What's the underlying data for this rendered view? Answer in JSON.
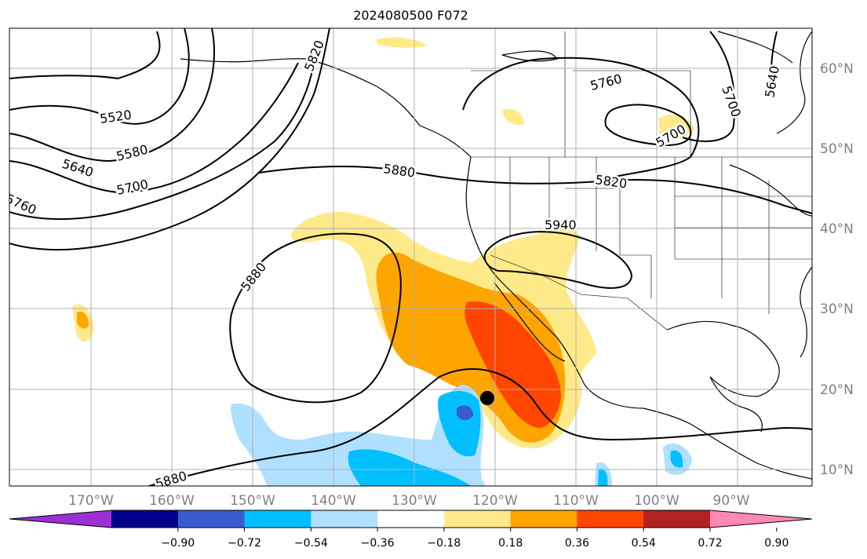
{
  "title": "2024080500 F072",
  "lon_labels": [
    "170°W",
    "160°W",
    "150°W",
    "140°W",
    "130°W",
    "120°W",
    "110°W",
    "100°W",
    "90°W"
  ],
  "lat_labels": [
    "60°N",
    "50°N",
    "40°N",
    "30°N",
    "20°N",
    "10°N"
  ],
  "contour_labels": [
    "5520",
    "5580",
    "5640",
    "5700",
    "5760",
    "5820",
    "5880",
    "5940",
    "5880",
    "5880",
    "5820",
    "5760",
    "5700",
    "5640",
    "5700"
  ],
  "colorbar": {
    "ticks": [
      "−0.90",
      "−0.72",
      "−0.54",
      "−0.36",
      "−0.18",
      "0.18",
      "0.36",
      "0.54",
      "0.72",
      "0.90"
    ],
    "colors": [
      "#9b30d6",
      "#00008b",
      "#3a5bd0",
      "#00bfff",
      "#b0e0ff",
      "#ffffff",
      "#ffea8a",
      "#ffa500",
      "#ff4500",
      "#b22222",
      "#ff89b6"
    ]
  },
  "colors": {
    "grid": "#b0b0b0",
    "contour": "#000000",
    "coast": "#000000"
  }
}
